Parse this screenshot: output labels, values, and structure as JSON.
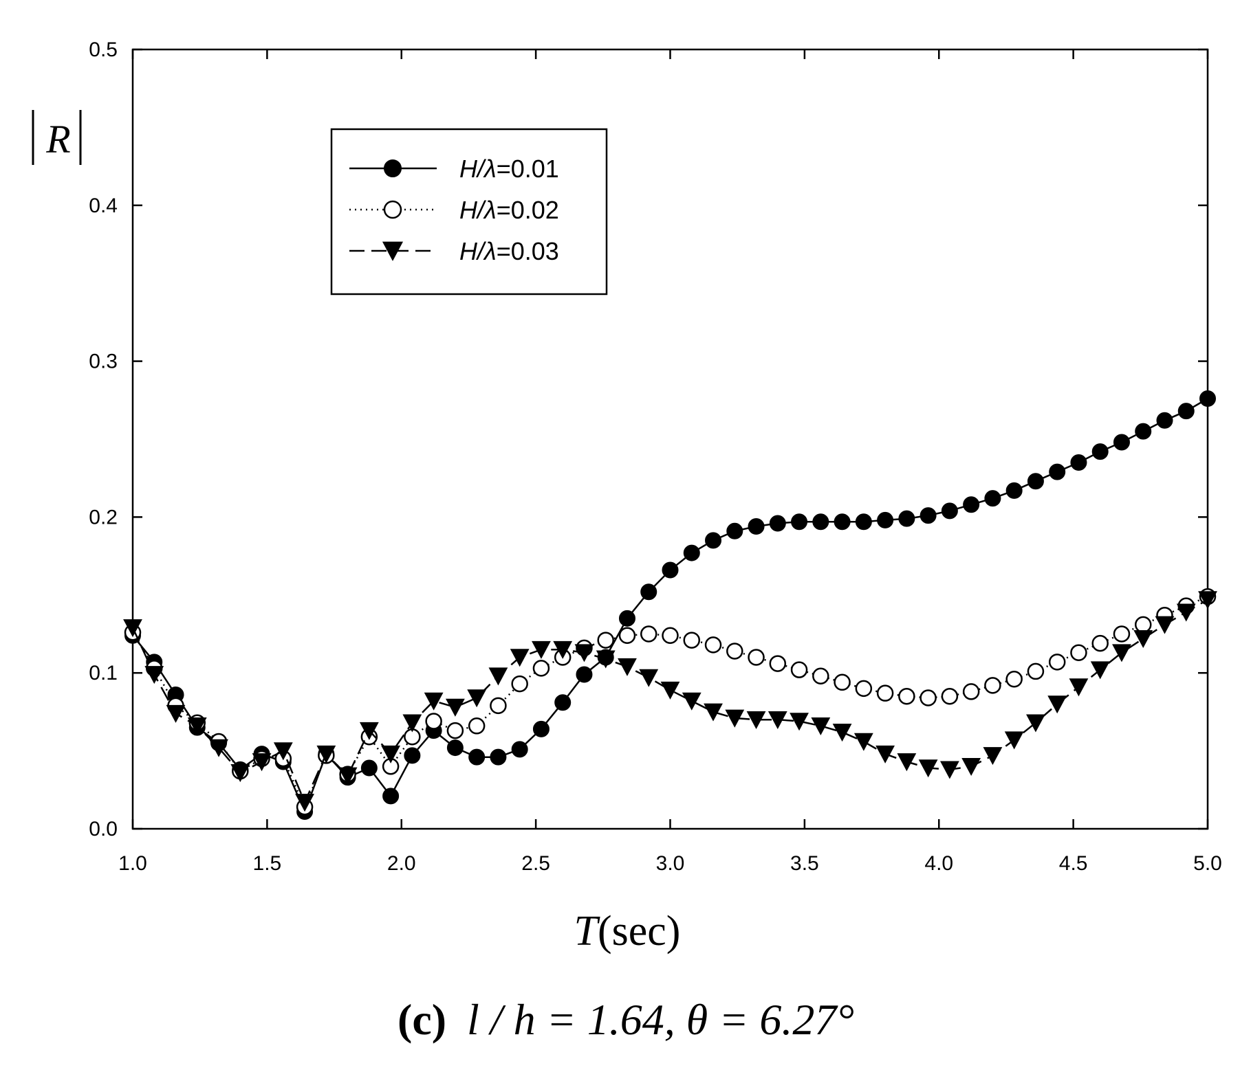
{
  "chart_data": {
    "type": "line",
    "title": "",
    "caption": {
      "panel": "(c)",
      "formula": "l / h = 1.64, θ = 6.27°"
    },
    "xlabel": {
      "symbol": "T",
      "unit": "(sec)"
    },
    "ylabel": {
      "symbol": "|R|"
    },
    "xlim": [
      1.0,
      5.0
    ],
    "ylim": [
      0.0,
      0.5
    ],
    "xticks": [
      "1.0",
      "1.5",
      "2.0",
      "2.5",
      "3.0",
      "3.5",
      "4.0",
      "4.5",
      "5.0"
    ],
    "yticks": [
      "0.0",
      "0.1",
      "0.2",
      "0.3",
      "0.4",
      "0.5"
    ],
    "grid": false,
    "legend_position": "upper-left",
    "x": [
      1.0,
      1.08,
      1.16,
      1.24,
      1.32,
      1.4,
      1.48,
      1.56,
      1.64,
      1.72,
      1.8,
      1.88,
      1.96,
      2.04,
      2.12,
      2.2,
      2.28,
      2.36,
      2.44,
      2.52,
      2.6,
      2.68,
      2.76,
      2.84,
      2.92,
      3.0,
      3.08,
      3.16,
      3.24,
      3.32,
      3.4,
      3.48,
      3.56,
      3.64,
      3.72,
      3.8,
      3.88,
      3.96,
      4.04,
      4.12,
      4.2,
      4.28,
      4.36,
      4.44,
      4.52,
      4.6,
      4.68,
      4.76,
      4.84,
      4.92,
      5.0
    ],
    "series": [
      {
        "name": "H/λ=0.01",
        "legend_prefix": "H/λ",
        "legend_value": "=0.01",
        "marker": "filled-circle",
        "line": "solid",
        "values": [
          0.124,
          0.107,
          0.086,
          0.065,
          0.055,
          0.038,
          0.048,
          0.043,
          0.011,
          0.048,
          0.033,
          0.039,
          0.021,
          0.047,
          0.063,
          0.052,
          0.046,
          0.046,
          0.051,
          0.064,
          0.081,
          0.099,
          0.11,
          0.135,
          0.152,
          0.166,
          0.177,
          0.185,
          0.191,
          0.194,
          0.196,
          0.197,
          0.197,
          0.197,
          0.197,
          0.198,
          0.199,
          0.201,
          0.204,
          0.208,
          0.212,
          0.217,
          0.223,
          0.229,
          0.235,
          0.242,
          0.248,
          0.255,
          0.262,
          0.268,
          0.276
        ]
      },
      {
        "name": "H/λ=0.02",
        "legend_prefix": "H/λ",
        "legend_value": "=0.02",
        "marker": "open-circle",
        "line": "dotted",
        "values": [
          0.126,
          0.103,
          0.079,
          0.068,
          0.056,
          0.037,
          0.045,
          0.045,
          0.014,
          0.047,
          0.035,
          0.059,
          0.04,
          0.059,
          0.069,
          0.063,
          0.066,
          0.079,
          0.093,
          0.103,
          0.11,
          0.116,
          0.121,
          0.124,
          0.125,
          0.124,
          0.121,
          0.118,
          0.114,
          0.11,
          0.106,
          0.102,
          0.098,
          0.094,
          0.09,
          0.087,
          0.085,
          0.084,
          0.085,
          0.088,
          0.092,
          0.096,
          0.101,
          0.107,
          0.113,
          0.119,
          0.125,
          0.131,
          0.137,
          0.143,
          0.149
        ]
      },
      {
        "name": "H/λ=0.03",
        "legend_prefix": "H/λ",
        "legend_value": "=0.03",
        "marker": "filled-triangle-down",
        "line": "dashed",
        "values": [
          0.129,
          0.099,
          0.074,
          0.066,
          0.052,
          0.036,
          0.043,
          0.05,
          0.017,
          0.048,
          0.034,
          0.063,
          0.048,
          0.068,
          0.082,
          0.078,
          0.084,
          0.098,
          0.11,
          0.115,
          0.115,
          0.113,
          0.109,
          0.104,
          0.097,
          0.089,
          0.082,
          0.075,
          0.071,
          0.07,
          0.07,
          0.069,
          0.066,
          0.062,
          0.056,
          0.048,
          0.043,
          0.039,
          0.038,
          0.04,
          0.047,
          0.057,
          0.068,
          0.08,
          0.091,
          0.102,
          0.113,
          0.122,
          0.131,
          0.139,
          0.147
        ]
      }
    ]
  }
}
